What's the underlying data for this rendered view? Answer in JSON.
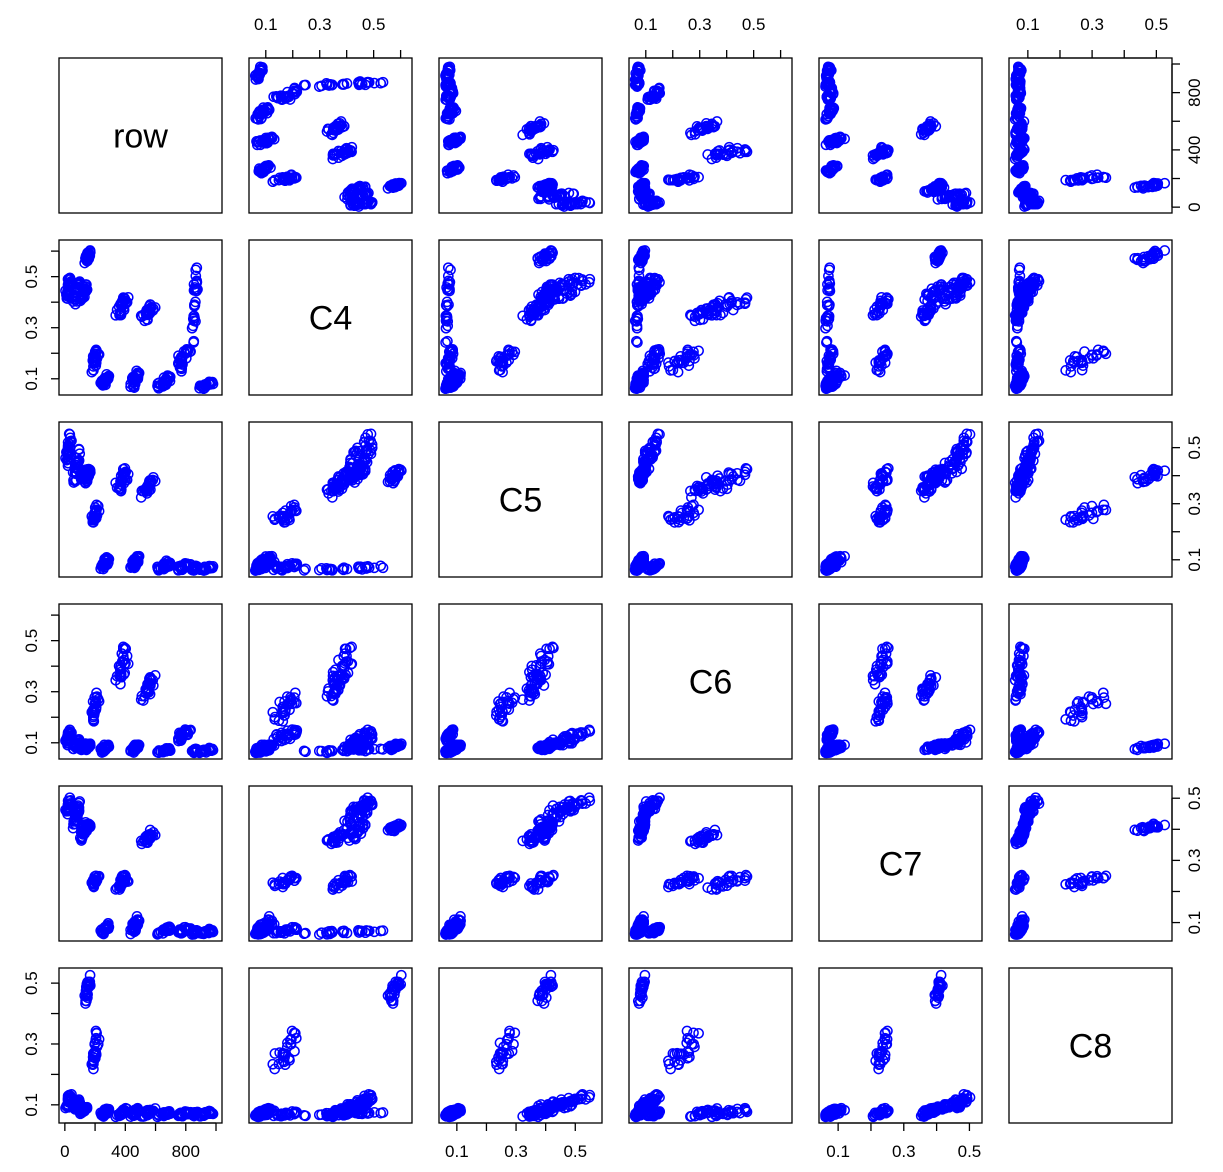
{
  "chart_data": {
    "type": "scatter",
    "layout": "scatterplot-matrix",
    "title": "",
    "point_color": "#0000ff",
    "point_shape": "open-circle",
    "variables": [
      "row",
      "C4",
      "C5",
      "C6",
      "C7",
      "C8"
    ],
    "ticks": {
      "row": [
        0,
        400,
        800
      ],
      "C4": [
        0.1,
        0.3,
        0.5
      ],
      "C5": [
        0.1,
        0.3,
        0.5
      ],
      "C6": [
        0.1,
        0.3,
        0.5
      ],
      "C7": [
        0.1,
        0.3,
        0.5
      ],
      "C8": [
        0.1,
        0.3,
        0.5
      ]
    },
    "ranges": {
      "row": [
        1,
        1000
      ],
      "C4": [
        0.06,
        0.62
      ],
      "C5": [
        0.06,
        0.57
      ],
      "C6": [
        0.06,
        0.62
      ],
      "C7": [
        0.06,
        0.52
      ],
      "C8": [
        0.06,
        0.53
      ]
    },
    "clusters": [
      {
        "row": [
          0,
          50
        ],
        "C4": [
          0.4,
          0.52
        ],
        "C5": [
          0.42,
          0.56
        ],
        "C6": [
          0.08,
          0.16
        ],
        "C7": [
          0.44,
          0.51
        ],
        "C8": [
          0.08,
          0.14
        ]
      },
      {
        "row": [
          50,
          100
        ],
        "C4": [
          0.38,
          0.5
        ],
        "C5": [
          0.36,
          0.5
        ],
        "C6": [
          0.07,
          0.12
        ],
        "C7": [
          0.4,
          0.5
        ],
        "C8": [
          0.08,
          0.12
        ]
      },
      {
        "row": [
          100,
          150
        ],
        "C4": [
          0.4,
          0.48
        ],
        "C5": [
          0.38,
          0.43
        ],
        "C6": [
          0.07,
          0.1
        ],
        "C7": [
          0.36,
          0.43
        ],
        "C8": [
          0.07,
          0.1
        ]
      },
      {
        "row": [
          130,
          170
        ],
        "C4": [
          0.55,
          0.61
        ],
        "C5": [
          0.37,
          0.43
        ],
        "C6": [
          0.07,
          0.1
        ],
        "C7": [
          0.39,
          0.42
        ],
        "C8": [
          0.42,
          0.53
        ]
      },
      {
        "row": [
          170,
          230
        ],
        "C4": [
          0.12,
          0.23
        ],
        "C5": [
          0.22,
          0.3
        ],
        "C6": [
          0.17,
          0.32
        ],
        "C7": [
          0.21,
          0.26
        ],
        "C8": [
          0.2,
          0.36
        ]
      },
      {
        "row": [
          230,
          300
        ],
        "C4": [
          0.06,
          0.12
        ],
        "C5": [
          0.06,
          0.12
        ],
        "C6": [
          0.06,
          0.1
        ],
        "C7": [
          0.06,
          0.1
        ],
        "C8": [
          0.06,
          0.09
        ]
      },
      {
        "row": [
          330,
          430
        ],
        "C4": [
          0.33,
          0.44
        ],
        "C5": [
          0.34,
          0.43
        ],
        "C6": [
          0.3,
          0.5
        ],
        "C7": [
          0.2,
          0.26
        ],
        "C8": [
          0.06,
          0.09
        ]
      },
      {
        "row": [
          430,
          500
        ],
        "C4": [
          0.06,
          0.14
        ],
        "C5": [
          0.06,
          0.12
        ],
        "C6": [
          0.06,
          0.1
        ],
        "C7": [
          0.06,
          0.12
        ],
        "C8": [
          0.06,
          0.09
        ]
      },
      {
        "row": [
          500,
          600
        ],
        "C4": [
          0.32,
          0.4
        ],
        "C5": [
          0.32,
          0.4
        ],
        "C6": [
          0.26,
          0.38
        ],
        "C7": [
          0.34,
          0.4
        ],
        "C8": [
          0.06,
          0.09
        ]
      },
      {
        "row": [
          600,
          720
        ],
        "C4": [
          0.06,
          0.12
        ],
        "C5": [
          0.06,
          0.1
        ],
        "C6": [
          0.06,
          0.08
        ],
        "C7": [
          0.06,
          0.09
        ],
        "C8": [
          0.06,
          0.08
        ]
      },
      {
        "row": [
          720,
          840
        ],
        "C4": [
          0.12,
          0.23
        ],
        "C5": [
          0.06,
          0.09
        ],
        "C6": [
          0.1,
          0.16
        ],
        "C7": [
          0.06,
          0.09
        ],
        "C8": [
          0.06,
          0.08
        ]
      },
      {
        "row": [
          840,
          880
        ],
        "C4": [
          0.2,
          0.6
        ],
        "C5": [
          0.06,
          0.08
        ],
        "C6": [
          0.06,
          0.08
        ],
        "C7": [
          0.06,
          0.08
        ],
        "C8": [
          0.06,
          0.08
        ]
      },
      {
        "row": [
          880,
          1000
        ],
        "C4": [
          0.06,
          0.09
        ],
        "C5": [
          0.06,
          0.08
        ],
        "C6": [
          0.06,
          0.08
        ],
        "C7": [
          0.06,
          0.08
        ],
        "C8": [
          0.06,
          0.08
        ]
      }
    ]
  }
}
